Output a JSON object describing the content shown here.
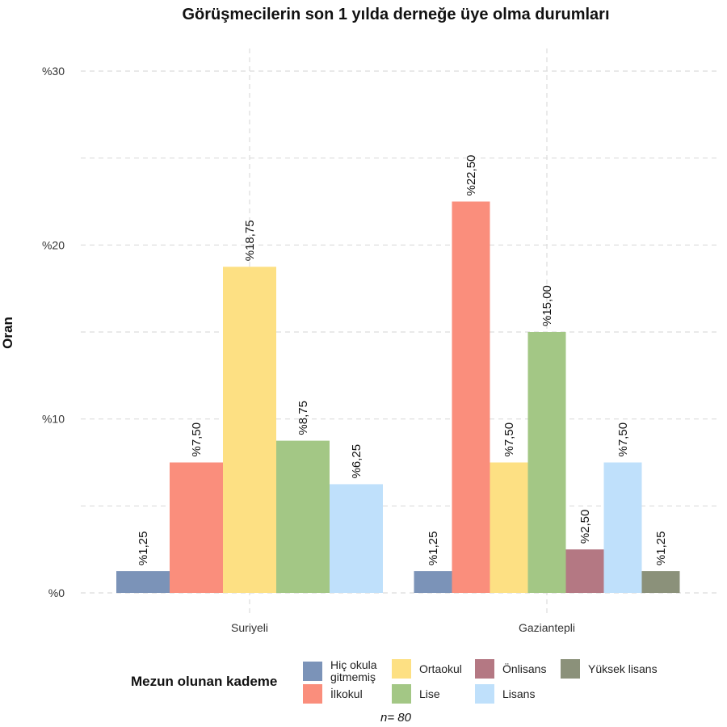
{
  "chart_data": {
    "type": "bar",
    "title": "Görüşmecilerin son 1 yılda derneğe üye olma durumları",
    "ylabel": "Oran",
    "xlabel": "",
    "ylim": [
      0,
      30
    ],
    "y_ticks": [
      0,
      10,
      20,
      30
    ],
    "y_tick_labels": [
      "%0",
      "%10",
      "%20",
      "%30"
    ],
    "grid": true,
    "legend_position": "bottom",
    "legend_title": "Mezun olunan kademe",
    "categories": [
      "Suriyeli",
      "Gaziantepli"
    ],
    "series": [
      {
        "name": "Hiç okula gitmemiş",
        "color": "#7b93b8",
        "values": [
          1.25,
          1.25
        ],
        "labels": [
          "%1,25",
          "%1,25"
        ]
      },
      {
        "name": "İlkokul",
        "color": "#fa8e7c",
        "values": [
          7.5,
          22.5
        ],
        "labels": [
          "%7,50",
          "%22,50"
        ]
      },
      {
        "name": "Ortaokul",
        "color": "#fde083",
        "values": [
          18.75,
          7.5
        ],
        "labels": [
          "%18,75",
          "%7,50"
        ]
      },
      {
        "name": "Lise",
        "color": "#a3c785",
        "values": [
          8.75,
          15.0
        ],
        "labels": [
          "%8,75",
          "%15,00"
        ]
      },
      {
        "name": "Önlisans",
        "color": "#b47883",
        "values": [
          null,
          2.5
        ],
        "labels": [
          null,
          "%2,50"
        ]
      },
      {
        "name": "Lisans",
        "color": "#bfe0fb",
        "values": [
          6.25,
          7.5
        ],
        "labels": [
          "%6,25",
          "%7,50"
        ]
      },
      {
        "name": "Yüksek lisans",
        "color": "#8b917a",
        "values": [
          null,
          1.25
        ],
        "labels": [
          null,
          "%1,25"
        ]
      }
    ]
  },
  "legend": {
    "title": "Mezun olunan kademe",
    "items": [
      {
        "label": "Hiç okula gitmemiş",
        "color": "#7b93b8"
      },
      {
        "label": "İlkokul",
        "color": "#fa8e7c"
      },
      {
        "label": "Ortaokul",
        "color": "#fde083"
      },
      {
        "label": "Lise",
        "color": "#a3c785"
      },
      {
        "label": "Önlisans",
        "color": "#b47883"
      },
      {
        "label": "Lisans",
        "color": "#bfe0fb"
      },
      {
        "label": "Yüksek lisans",
        "color": "#8b917a"
      }
    ]
  },
  "footnote": "n=  80"
}
